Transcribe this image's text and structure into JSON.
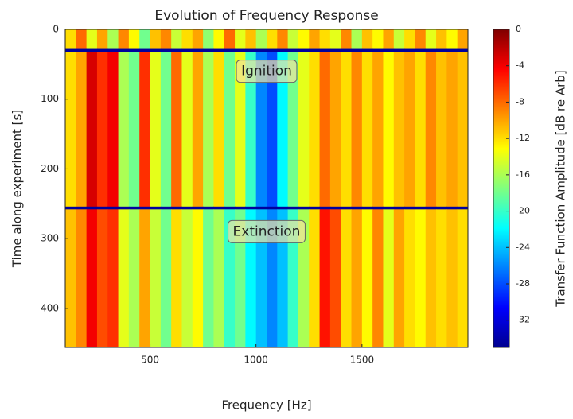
{
  "chart_data": {
    "type": "heatmap",
    "title": "Evolution of Frequency Response",
    "x_label": "Frequency [Hz]",
    "y_label": "Time along experiment [s]",
    "colorbar_label": "Transfer Function Amplitude [dB re Arb]",
    "colormap": "jet",
    "xlim": [
      100,
      2000
    ],
    "ylim": [
      0,
      456
    ],
    "y_inverted": true,
    "xticks": [
      500,
      1000,
      1500
    ],
    "yticks": [
      0,
      100,
      200,
      300,
      400
    ],
    "clim": [
      -35,
      0
    ],
    "cticks": [
      0,
      -4,
      -8,
      -12,
      -16,
      -20,
      -24,
      -28,
      -32
    ],
    "x_edges": [
      100,
      150,
      200,
      250,
      300,
      350,
      400,
      450,
      500,
      550,
      600,
      650,
      700,
      750,
      800,
      850,
      900,
      950,
      1000,
      1050,
      1100,
      1150,
      1200,
      1250,
      1300,
      1350,
      1400,
      1450,
      1500,
      1550,
      1600,
      1650,
      1700,
      1750,
      1800,
      1850,
      1900,
      1950,
      2000
    ],
    "y_edges": [
      0,
      28,
      32,
      254,
      258,
      456
    ],
    "z": [
      [
        -12,
        -8,
        -14,
        -10,
        -16,
        -9,
        -13,
        -18,
        -11,
        -9,
        -15,
        -12,
        -10,
        -17,
        -13,
        -8,
        -14,
        -11,
        -16,
        -12,
        -9,
        -15,
        -13,
        -10,
        -12,
        -14,
        -9,
        -16,
        -11,
        -13,
        -10,
        -15,
        -12,
        -9,
        -14,
        -11,
        -13,
        -10
      ],
      [
        -34,
        -34,
        -34,
        -34,
        -34,
        -34,
        -34,
        -34,
        -34,
        -34,
        -34,
        -34,
        -34,
        -34,
        -34,
        -34,
        -34,
        -34,
        -34,
        -34,
        -34,
        -34,
        -34,
        -34,
        -34,
        -34,
        -34,
        -34,
        -34,
        -34,
        -34,
        -34,
        -34,
        -34,
        -34,
        -34,
        -34,
        -34
      ],
      [
        -12,
        -10,
        -3,
        -6,
        -4,
        -16,
        -18,
        -6,
        -14,
        -18,
        -8,
        -14,
        -10,
        -16,
        -12,
        -18,
        -14,
        -20,
        -26,
        -28,
        -22,
        -18,
        -14,
        -12,
        -8,
        -10,
        -12,
        -9,
        -12,
        -10,
        -13,
        -11,
        -10,
        -12,
        -9,
        -11,
        -10,
        -11
      ],
      [
        -34,
        -34,
        -34,
        -34,
        -34,
        -34,
        -34,
        -34,
        -34,
        -34,
        -34,
        -34,
        -34,
        -34,
        -34,
        -34,
        -34,
        -34,
        -34,
        -34,
        -34,
        -34,
        -34,
        -34,
        -34,
        -34,
        -34,
        -34,
        -34,
        -34,
        -34,
        -34,
        -34,
        -34,
        -34,
        -34,
        -34,
        -34
      ],
      [
        -11,
        -9,
        -4,
        -7,
        -6,
        -14,
        -16,
        -10,
        -15,
        -18,
        -12,
        -15,
        -13,
        -18,
        -16,
        -20,
        -18,
        -22,
        -24,
        -26,
        -24,
        -20,
        -16,
        -12,
        -5,
        -7,
        -12,
        -10,
        -13,
        -9,
        -14,
        -10,
        -12,
        -13,
        -11,
        -12,
        -11,
        -12
      ]
    ],
    "annotations": [
      {
        "text": "Ignition",
        "x": 1050,
        "y": 60
      },
      {
        "text": "Extinction",
        "x": 1050,
        "y": 290
      }
    ]
  }
}
